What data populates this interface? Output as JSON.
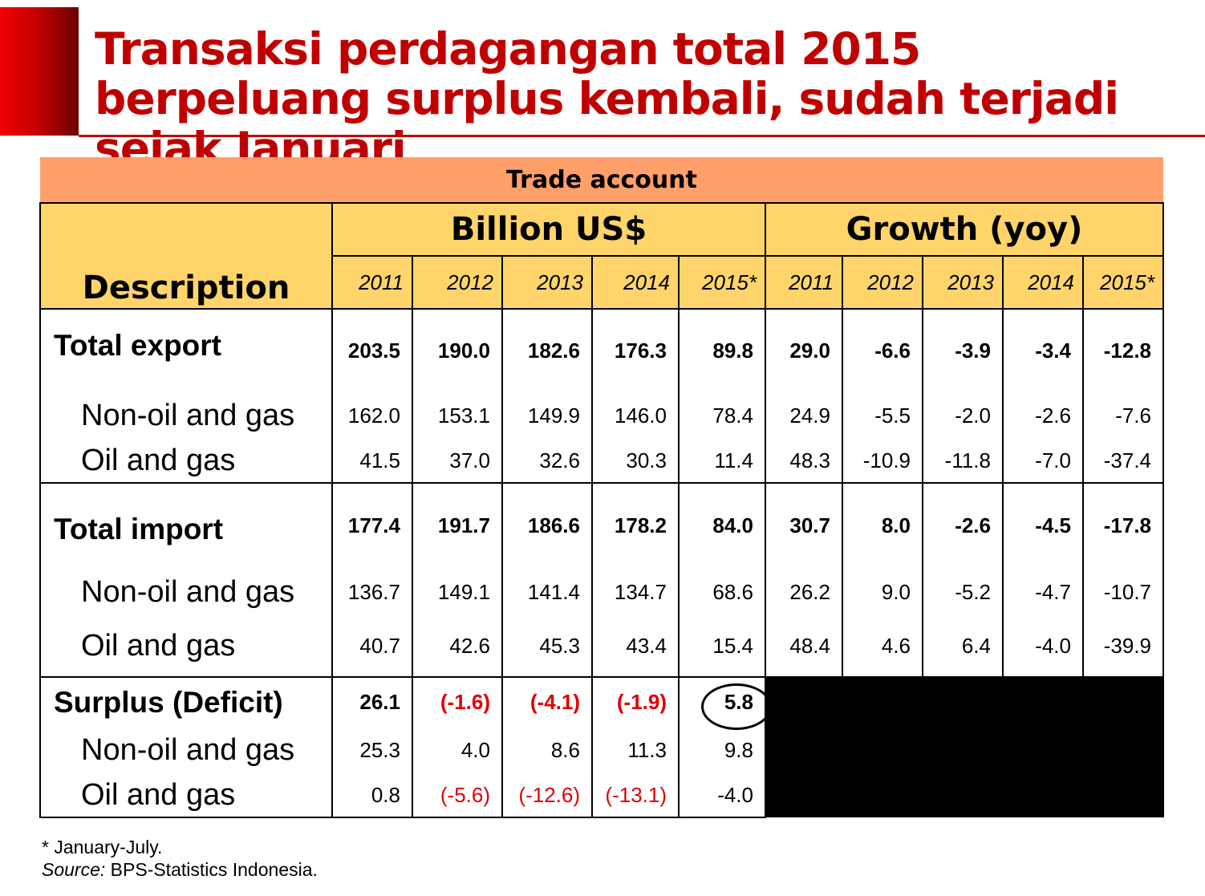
{
  "page": {
    "title": "Transaksi perdagangan total 2015 berpeluang surplus kembali, sudah terjadi sejak Januari"
  },
  "table": {
    "caption": "Trade account",
    "description_header": "Description",
    "group_billion": "Billion US$",
    "group_growth": "Growth (yoy)",
    "years": [
      "2011",
      "2012",
      "2013",
      "2014",
      "2015*"
    ],
    "rows": [
      {
        "label": "Total export",
        "billion": [
          "203.5",
          "190.0",
          "182.6",
          "176.3",
          "89.8"
        ],
        "growth": [
          "29.0",
          "-6.6",
          "-3.9",
          "-3.4",
          "-12.8"
        ]
      },
      {
        "label": "Non-oil and gas",
        "billion": [
          "162.0",
          "153.1",
          "149.9",
          "146.0",
          "78.4"
        ],
        "growth": [
          "24.9",
          "-5.5",
          "-2.0",
          "-2.6",
          "-7.6"
        ]
      },
      {
        "label": "Oil and gas",
        "billion": [
          "41.5",
          "37.0",
          "32.6",
          "30.3",
          "11.4"
        ],
        "growth": [
          "48.3",
          "-10.9",
          "-11.8",
          "-7.0",
          "-37.4"
        ]
      },
      {
        "label": "Total import",
        "billion": [
          "177.4",
          "191.7",
          "186.6",
          "178.2",
          "84.0"
        ],
        "growth": [
          "30.7",
          "8.0",
          "-2.6",
          "-4.5",
          "-17.8"
        ]
      },
      {
        "label": "Non-oil and gas",
        "billion": [
          "136.7",
          "149.1",
          "141.4",
          "134.7",
          "68.6"
        ],
        "growth": [
          "26.2",
          "9.0",
          "-5.2",
          "-4.7",
          "-10.7"
        ]
      },
      {
        "label": "Oil and gas",
        "billion": [
          "40.7",
          "42.6",
          "45.3",
          "43.4",
          "15.4"
        ],
        "growth": [
          "48.4",
          "4.6",
          "6.4",
          "-4.0",
          "-39.9"
        ]
      },
      {
        "label": "Surplus (Deficit)",
        "billion": [
          "26.1",
          "(-1.6)",
          "(-4.1)",
          "(-1.9)",
          "5.8"
        ]
      },
      {
        "label": "Non-oil and gas",
        "billion": [
          "25.3",
          "4.0",
          "8.6",
          "11.3",
          "9.8"
        ]
      },
      {
        "label": "Oil and gas",
        "billion": [
          "0.8",
          "(-5.6)",
          "(-12.6)",
          "(-13.1)",
          "-4.0"
        ]
      }
    ]
  },
  "notes": {
    "footnote": "* January-July.",
    "source_label": "Source:",
    "source_text": " BPS-Statistics Indonesia."
  }
}
